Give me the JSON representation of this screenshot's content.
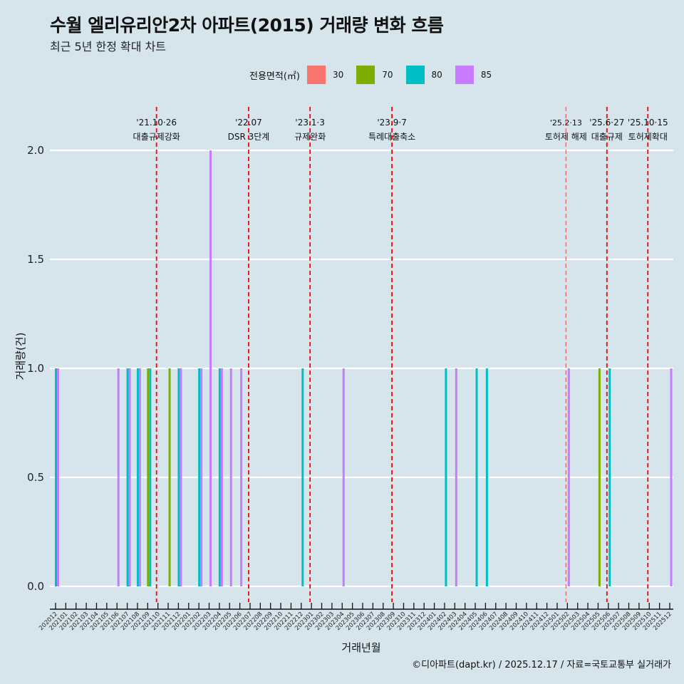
{
  "header": {
    "title": "수월 엘리유리안2차 아파트(2015) 거래량 변화 흐름",
    "subtitle": "최근 5년 한정 확대 차트"
  },
  "caption": "©디아파트(dapt.kr) / 2025.12.17 / 자료=국토교통부 실거래가",
  "chart_data": {
    "type": "bar",
    "title": "수월 엘리유리안2차 아파트(2015) 거래량 변화 흐름",
    "xlabel": "거래년월",
    "ylabel": "거래량(건)",
    "ylim": [
      0,
      2
    ],
    "yticks": [
      "0.0",
      "0.5",
      "1.0",
      "1.5",
      "2.0"
    ],
    "grid": true,
    "legend": {
      "title": "전용면적(㎡)",
      "placement": "top",
      "entries": [
        {
          "label": "30",
          "color": "#F8766D"
        },
        {
          "label": "70",
          "color": "#7CAE00"
        },
        {
          "label": "80",
          "color": "#00BFC4"
        },
        {
          "label": "85",
          "color": "#C77CFF"
        }
      ]
    },
    "categories": [
      "202012",
      "202101",
      "202102",
      "202103",
      "202104",
      "202105",
      "202106",
      "202107",
      "202108",
      "202109",
      "202110",
      "202111",
      "202112",
      "202201",
      "202202",
      "202203",
      "202204",
      "202205",
      "202206",
      "202207",
      "202208",
      "202209",
      "202210",
      "202211",
      "202212",
      "202301",
      "202302",
      "202303",
      "202304",
      "202305",
      "202306",
      "202307",
      "202308",
      "202309",
      "202310",
      "202311",
      "202312",
      "202401",
      "202402",
      "202403",
      "202404",
      "202405",
      "202406",
      "202407",
      "202408",
      "202409",
      "202410",
      "202411",
      "202412",
      "202501",
      "202502",
      "202503",
      "202504",
      "202505",
      "202506",
      "202507",
      "202508",
      "202509",
      "202510",
      "202511",
      "202512"
    ],
    "bars": [
      {
        "month": "202012",
        "area": "80",
        "value": 1
      },
      {
        "month": "202012",
        "area": "85",
        "value": 1
      },
      {
        "month": "202106",
        "area": "85",
        "value": 1
      },
      {
        "month": "202107",
        "area": "80",
        "value": 1
      },
      {
        "month": "202107",
        "area": "85",
        "value": 1
      },
      {
        "month": "202108",
        "area": "80",
        "value": 1
      },
      {
        "month": "202108",
        "area": "85",
        "value": 1
      },
      {
        "month": "202109",
        "area": "70",
        "value": 1
      },
      {
        "month": "202109",
        "area": "80",
        "value": 1
      },
      {
        "month": "202111",
        "area": "70",
        "value": 1
      },
      {
        "month": "202112",
        "area": "80",
        "value": 1
      },
      {
        "month": "202112",
        "area": "85",
        "value": 1
      },
      {
        "month": "202202",
        "area": "80",
        "value": 1
      },
      {
        "month": "202202",
        "area": "85",
        "value": 1
      },
      {
        "month": "202203",
        "area": "85",
        "value": 2
      },
      {
        "month": "202204",
        "area": "80",
        "value": 1
      },
      {
        "month": "202204",
        "area": "85",
        "value": 1
      },
      {
        "month": "202205",
        "area": "85",
        "value": 1
      },
      {
        "month": "202206",
        "area": "85",
        "value": 1
      },
      {
        "month": "202212",
        "area": "80",
        "value": 1
      },
      {
        "month": "202304",
        "area": "85",
        "value": 1
      },
      {
        "month": "202402",
        "area": "80",
        "value": 1
      },
      {
        "month": "202403",
        "area": "85",
        "value": 1
      },
      {
        "month": "202405",
        "area": "80",
        "value": 1
      },
      {
        "month": "202406",
        "area": "80",
        "value": 1
      },
      {
        "month": "202502",
        "area": "85",
        "value": 1
      },
      {
        "month": "202505",
        "area": "70",
        "value": 1
      },
      {
        "month": "202506",
        "area": "80",
        "value": 1
      },
      {
        "month": "202512",
        "area": "85",
        "value": 1
      }
    ],
    "events": [
      {
        "month": "202110",
        "date": "'21.10·26",
        "label": "대출규제강화",
        "minor": false
      },
      {
        "month": "202207",
        "date": "'22.07",
        "label": "DSR 3단계",
        "minor": false
      },
      {
        "month": "202301",
        "date": "'23.1·3",
        "label": "규제완화",
        "minor": false
      },
      {
        "month": "202309",
        "date": "'23.9·7",
        "label": "특례대출축소",
        "minor": false
      },
      {
        "month": "202502",
        "date": "'25.2·13",
        "label": "토허제 해제",
        "minor": true
      },
      {
        "month": "202506",
        "date": "'25.6·27",
        "label": "대출규제",
        "minor": false
      },
      {
        "month": "202510",
        "date": "'25.10·15",
        "label": "토허제확대",
        "minor": false
      }
    ],
    "event_line_color": "#FF0000"
  }
}
